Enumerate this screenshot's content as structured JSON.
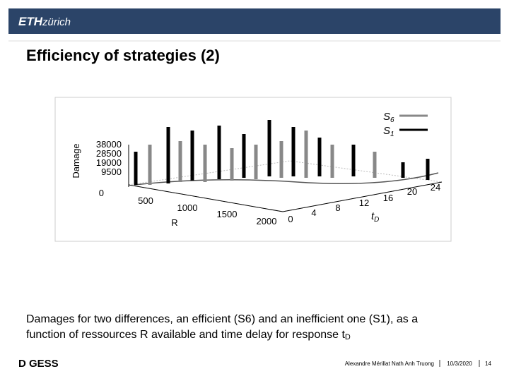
{
  "header": {
    "logo": "ETH",
    "logo_suffix": "zürich"
  },
  "title": "Efficiency of strategies (2)",
  "figure": {
    "legend": [
      {
        "letter": "S",
        "sub": "6"
      },
      {
        "letter": "S",
        "sub": "1"
      }
    ],
    "z_label": "Damage",
    "z_ticks": [
      "38000",
      "28500",
      "19000",
      "9500",
      "0"
    ],
    "x_label": "R",
    "x_ticks": [
      "500",
      "1000",
      "1500",
      "2000"
    ],
    "y_label": {
      "letter": "t",
      "sub": "D"
    },
    "y_ticks": [
      "0",
      "4",
      "8",
      "12",
      "16",
      "20",
      "24"
    ]
  },
  "caption": {
    "line1": "Damages for two differences, an efficient (S6) and an inefficient one (S1), as a",
    "line2": "function of ressources R available and time delay for response t",
    "line2_sub": "D"
  },
  "footer": {
    "logo": "D GESS",
    "author": "Alexandre Mérillat Nath Anh Truong",
    "date": "10/3/2020",
    "page": "14"
  }
}
